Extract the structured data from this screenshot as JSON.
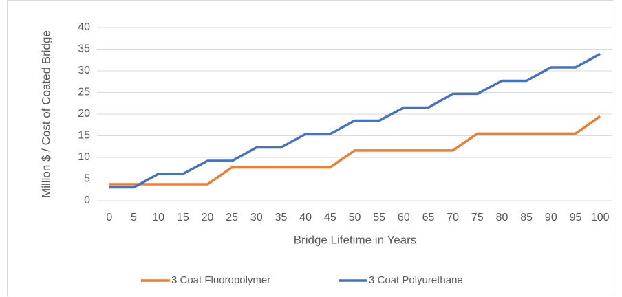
{
  "chart_data": {
    "type": "line",
    "x_label": "Bridge Lifetime in Years",
    "y_label": "Million $ / Cost of Coated Bridge",
    "categories": [
      "0",
      "5",
      "10",
      "15",
      "20",
      "25",
      "30",
      "35",
      "40",
      "45",
      "50",
      "55",
      "60",
      "65",
      "70",
      "75",
      "80",
      "85",
      "90",
      "95",
      "100"
    ],
    "series": [
      {
        "name": "3 Coat Fluoropolymer",
        "color": "#ed7d31",
        "values": [
          3.8,
          3.8,
          3.8,
          3.8,
          3.8,
          7.7,
          7.7,
          7.7,
          7.7,
          7.7,
          11.6,
          11.6,
          11.6,
          11.6,
          11.6,
          15.5,
          15.5,
          15.5,
          15.5,
          15.5,
          19.5
        ]
      },
      {
        "name": "3 Coat Polyurethane",
        "color": "#4472c4",
        "values": [
          3.1,
          3.1,
          6.2,
          6.2,
          9.2,
          9.2,
          12.3,
          12.3,
          15.4,
          15.4,
          18.5,
          18.5,
          21.5,
          21.5,
          24.7,
          24.7,
          27.7,
          27.7,
          30.8,
          30.8,
          33.9
        ]
      }
    ],
    "ylim": [
      0,
      40
    ],
    "yticks": [
      0,
      5,
      10,
      15,
      20,
      25,
      30,
      35,
      40
    ],
    "grid": true,
    "legend": "bottom"
  }
}
